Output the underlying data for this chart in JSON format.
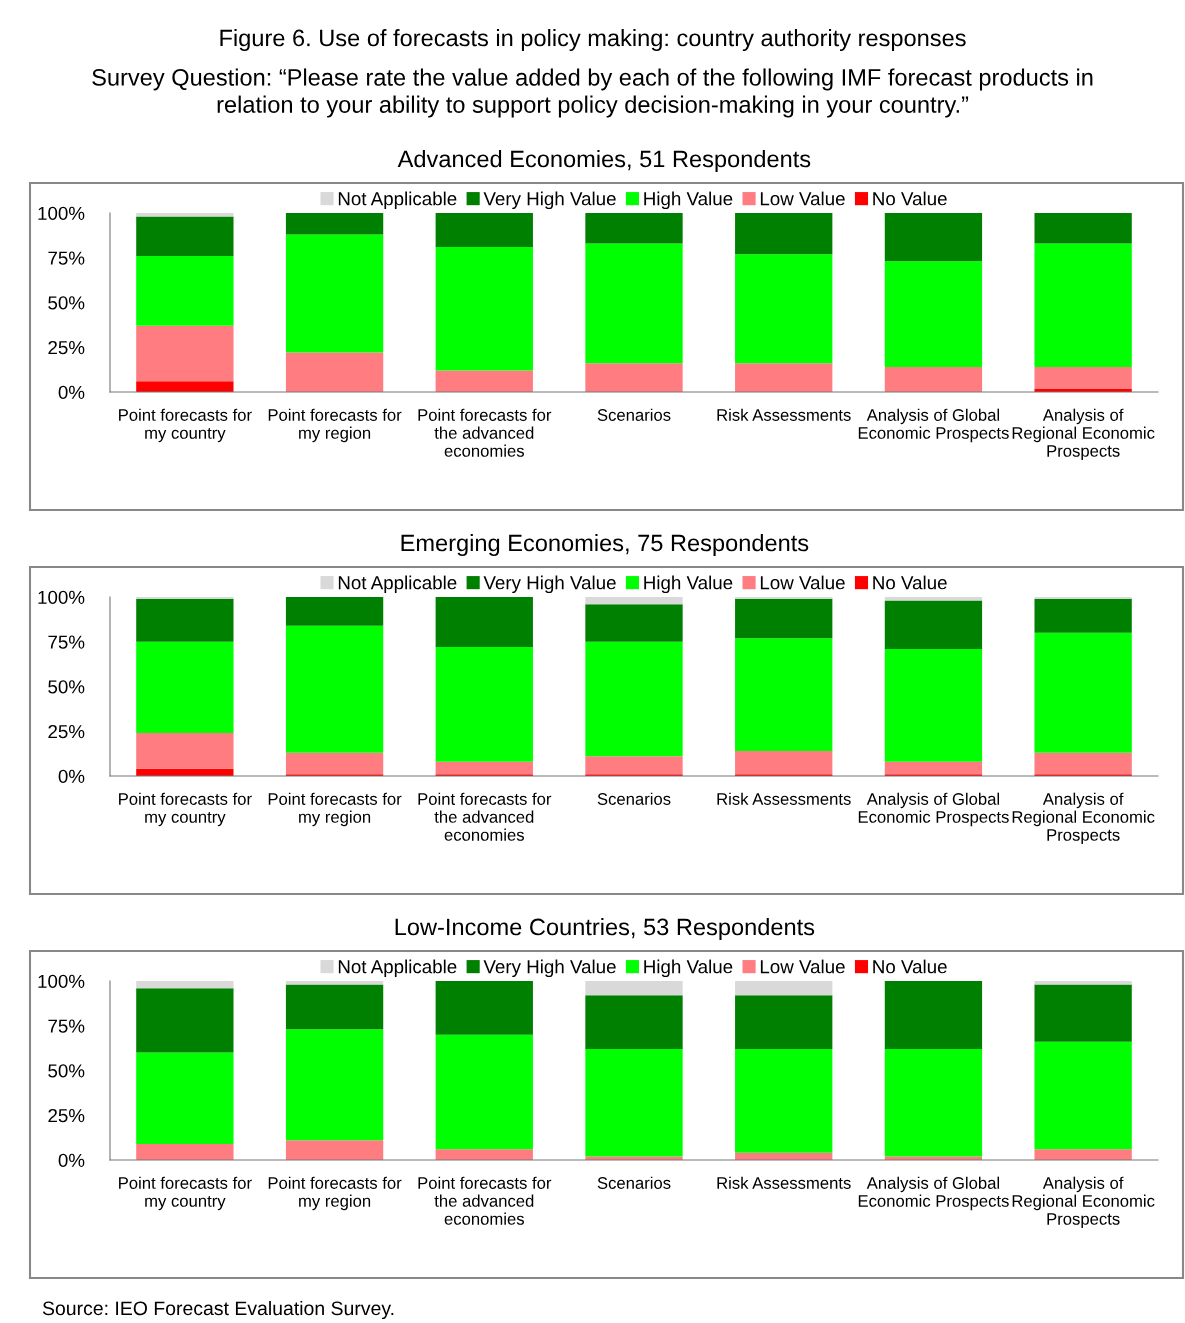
{
  "chart_data": [
    {
      "type": "other",
      "title": "Figure 6. Use of forecasts in policy making: country authority responses",
      "subtitle": "Survey Question: “Please rate the value added by each of the following IMF forecast products in relation to your ability to support policy decision-making in your country.”"
    },
    {
      "type": "bar",
      "stacked": true,
      "title": "Advanced Economies, 51 Respondents",
      "categories": [
        "Point forecasts for my country",
        "Point forecasts for my region",
        "Point forecasts for the advanced economies",
        "Scenarios",
        "Risk Assessments",
        "Analysis of Global Economic Prospects",
        "Analysis of Regional Economic Prospects"
      ],
      "series": [
        {
          "name": "No Value",
          "color": "#ff0000",
          "values": [
            6,
            0,
            0,
            0,
            0,
            0,
            2
          ]
        },
        {
          "name": "Low Value",
          "color": "#ff7c80",
          "values": [
            31,
            22,
            12,
            16,
            16,
            14,
            12
          ]
        },
        {
          "name": "High Value",
          "color": "#00ff00",
          "values": [
            39,
            66,
            69,
            67,
            61,
            59,
            69
          ]
        },
        {
          "name": "Very High Value",
          "color": "#008000",
          "values": [
            22,
            12,
            19,
            17,
            23,
            27,
            17
          ]
        },
        {
          "name": "Not Applicable",
          "color": "#d9d9d9",
          "values": [
            2,
            0,
            0,
            0,
            0,
            0,
            0
          ]
        }
      ],
      "ylim": [
        0,
        100
      ],
      "yticks": [
        {
          "value": 0,
          "label": "0%"
        },
        {
          "value": 25,
          "label": "25%"
        },
        {
          "value": 50,
          "label": "50%"
        },
        {
          "value": 75,
          "label": "75%"
        },
        {
          "value": 100,
          "label": "100%"
        }
      ],
      "legend": "top",
      "grid": false
    },
    {
      "type": "bar",
      "stacked": true,
      "title": "Emerging Economies, 75 Respondents",
      "categories": [
        "Point forecasts for my country",
        "Point forecasts for my region",
        "Point forecasts for the advanced economies",
        "Scenarios",
        "Risk Assessments",
        "Analysis of Global Economic Prospects",
        "Analysis of Regional Economic Prospects"
      ],
      "series": [
        {
          "name": "No Value",
          "color": "#ff0000",
          "values": [
            4,
            1,
            1,
            1,
            1,
            1,
            1
          ]
        },
        {
          "name": "Low Value",
          "color": "#ff7c80",
          "values": [
            20,
            12,
            7,
            10,
            13,
            7,
            12
          ]
        },
        {
          "name": "High Value",
          "color": "#00ff00",
          "values": [
            51,
            71,
            64,
            64,
            63,
            63,
            67
          ]
        },
        {
          "name": "Very High Value",
          "color": "#008000",
          "values": [
            24,
            16,
            28,
            21,
            22,
            27,
            19
          ]
        },
        {
          "name": "Not Applicable",
          "color": "#d9d9d9",
          "values": [
            1,
            0,
            0,
            4,
            1,
            2,
            1
          ]
        }
      ],
      "ylim": [
        0,
        100
      ],
      "yticks": [
        {
          "value": 0,
          "label": "0%"
        },
        {
          "value": 25,
          "label": "25%"
        },
        {
          "value": 50,
          "label": "50%"
        },
        {
          "value": 75,
          "label": "75%"
        },
        {
          "value": 100,
          "label": "100%"
        }
      ],
      "legend": "top",
      "grid": false
    },
    {
      "type": "bar",
      "stacked": true,
      "title": "Low-Income Countries, 53 Respondents",
      "categories": [
        "Point forecasts for my country",
        "Point forecasts for my region",
        "Point forecasts for the advanced economies",
        "Scenarios",
        "Risk Assessments",
        "Analysis of Global Economic Prospects",
        "Analysis of Regional Economic Prospects"
      ],
      "series": [
        {
          "name": "No Value",
          "color": "#ff0000",
          "values": [
            0,
            0,
            0,
            0,
            0,
            0,
            0
          ]
        },
        {
          "name": "Low Value",
          "color": "#ff7c80",
          "values": [
            9,
            11,
            6,
            2,
            4,
            2,
            6
          ]
        },
        {
          "name": "High Value",
          "color": "#00ff00",
          "values": [
            51,
            62,
            64,
            60,
            58,
            60,
            60
          ]
        },
        {
          "name": "Very High Value",
          "color": "#008000",
          "values": [
            36,
            25,
            30,
            30,
            30,
            38,
            32
          ]
        },
        {
          "name": "Not Applicable",
          "color": "#d9d9d9",
          "values": [
            4,
            2,
            0,
            8,
            8,
            0,
            2
          ]
        }
      ],
      "ylim": [
        0,
        100
      ],
      "yticks": [
        {
          "value": 0,
          "label": "0%"
        },
        {
          "value": 25,
          "label": "25%"
        },
        {
          "value": 50,
          "label": "50%"
        },
        {
          "value": 75,
          "label": "75%"
        },
        {
          "value": 100,
          "label": "100%"
        }
      ],
      "legend": "top",
      "grid": false,
      "annotations": [
        "Source: IEO Forecast Evaluation Survey."
      ]
    }
  ]
}
